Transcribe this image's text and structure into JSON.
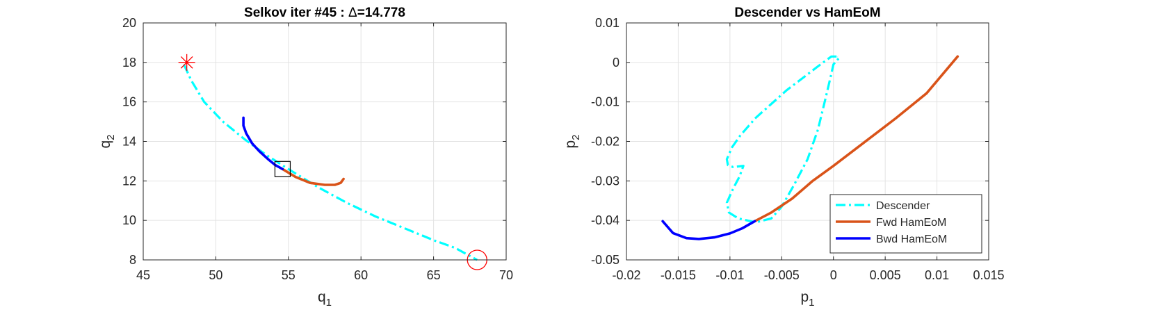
{
  "chart_data": [
    {
      "type": "line",
      "title_prefix": "Selkov iter #45 : ",
      "title_symbol": "Δ",
      "title_value": "=14.778",
      "xlabel": "q",
      "xlabel_sub": "1",
      "ylabel": "q",
      "ylabel_sub": "2",
      "xlim": [
        45,
        70
      ],
      "ylim": [
        8,
        20
      ],
      "xticks": [
        "45",
        "50",
        "55",
        "60",
        "65",
        "70"
      ],
      "yticks": [
        "8",
        "10",
        "12",
        "14",
        "16",
        "18",
        "20"
      ],
      "grid": true,
      "series": [
        {
          "style": "dash-dot",
          "color": "#00FFFF",
          "x": [
            47.8,
            48.3,
            49.2,
            50.5,
            52.0,
            53.5,
            55.0,
            57.0,
            59.0,
            61.0,
            63.0,
            65.0,
            66.5,
            68.0
          ],
          "y": [
            17.9,
            17.1,
            16.0,
            15.0,
            14.1,
            13.3,
            12.6,
            11.7,
            10.9,
            10.2,
            9.6,
            9.0,
            8.6,
            8.0
          ]
        },
        {
          "style": "solid",
          "color": "#D95319",
          "x": [
            54.6,
            55.5,
            56.5,
            57.5,
            58.2,
            58.6,
            58.8
          ],
          "y": [
            12.6,
            12.2,
            11.9,
            11.8,
            11.8,
            11.9,
            12.1
          ]
        },
        {
          "style": "solid",
          "color": "#0000FF",
          "x": [
            51.9,
            51.9,
            52.1,
            52.5,
            53.0,
            53.6,
            54.1,
            54.6
          ],
          "y": [
            15.2,
            14.8,
            14.4,
            13.9,
            13.5,
            13.1,
            12.8,
            12.6
          ]
        }
      ],
      "markers": [
        {
          "shape": "asterisk",
          "color": "#FF0000",
          "x": 48.0,
          "y": 18.0
        },
        {
          "shape": "circle",
          "color": "#FF0000",
          "x": 68.0,
          "y": 8.0
        },
        {
          "shape": "square",
          "color": "#000000",
          "x": 54.6,
          "y": 12.6
        }
      ]
    },
    {
      "type": "line",
      "title": "Descender vs HamEoM",
      "xlabel": "p",
      "xlabel_sub": "1",
      "ylabel": "p",
      "ylabel_sub": "2",
      "xlim": [
        -0.02,
        0.015
      ],
      "ylim": [
        -0.05,
        0.01
      ],
      "xticks": [
        "-0.02",
        "-0.015",
        "-0.01",
        "-0.005",
        "0",
        "0.005",
        "0.01",
        "0.015"
      ],
      "yticks": [
        "-0.05",
        "-0.04",
        "-0.03",
        "-0.02",
        "-0.01",
        "0",
        "0.01"
      ],
      "grid": true,
      "legend_position": "bottom-right",
      "series": [
        {
          "name": "Descender",
          "style": "dash-dot",
          "color": "#00FFFF",
          "x": [
            0.0003,
            -0.0002,
            -0.0015,
            -0.003,
            -0.0045,
            -0.006,
            -0.0075,
            -0.009,
            -0.0098,
            -0.0103,
            -0.0102,
            -0.0097,
            -0.0087,
            -0.0091,
            -0.0097,
            -0.0103,
            -0.0101,
            -0.0092,
            -0.0075,
            -0.006,
            -0.005,
            -0.0038,
            -0.0025,
            -0.0015,
            -0.0008,
            -0.0003,
            0.0,
            0.0003,
            0.0006,
            0.0004
          ],
          "y": [
            0.0015,
            0.0015,
            -0.001,
            -0.004,
            -0.007,
            -0.0105,
            -0.014,
            -0.0185,
            -0.0215,
            -0.0245,
            -0.026,
            -0.0265,
            -0.0262,
            -0.029,
            -0.032,
            -0.0355,
            -0.038,
            -0.0395,
            -0.0405,
            -0.0395,
            -0.0365,
            -0.031,
            -0.0245,
            -0.017,
            -0.0095,
            -0.004,
            -0.0005,
            0.0005,
            0.0012,
            0.0015
          ]
        },
        {
          "name": "Fwd HamEoM",
          "style": "solid",
          "color": "#D95319",
          "x": [
            -0.0076,
            -0.006,
            -0.004,
            -0.002,
            0.0,
            0.003,
            0.006,
            0.009,
            0.012
          ],
          "y": [
            -0.0402,
            -0.038,
            -0.0345,
            -0.03,
            -0.0262,
            -0.0202,
            -0.0142,
            -0.0078,
            0.0015
          ]
        },
        {
          "name": "Bwd HamEoM",
          "style": "solid",
          "color": "#0000FF",
          "x": [
            -0.0165,
            -0.0155,
            -0.0142,
            -0.013,
            -0.0115,
            -0.01,
            -0.0088,
            -0.0076
          ],
          "y": [
            -0.0402,
            -0.0432,
            -0.0445,
            -0.0447,
            -0.0443,
            -0.0433,
            -0.042,
            -0.0402
          ]
        }
      ]
    }
  ]
}
